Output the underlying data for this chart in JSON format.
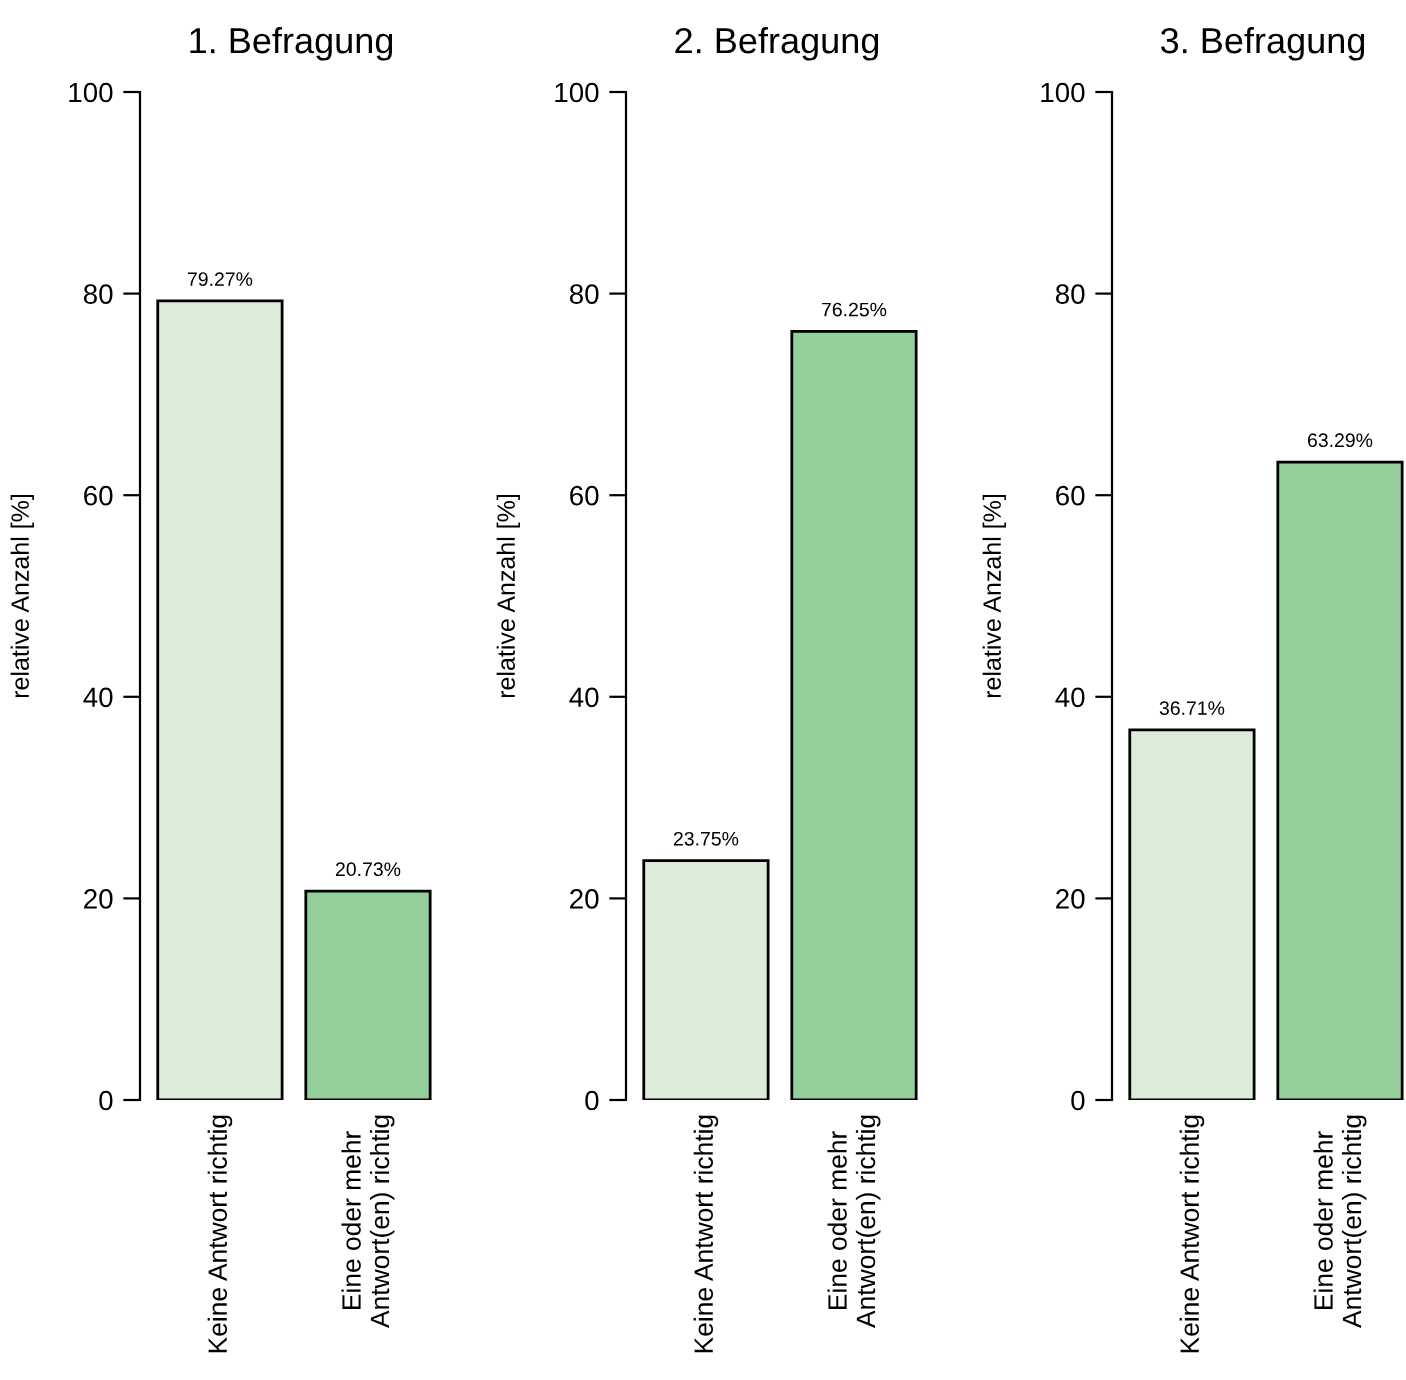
{
  "chart_data": [
    {
      "type": "bar",
      "title": "1. Befragung",
      "ylabel": "relative Anzahl [%]",
      "categories": [
        "Keine Antwort richtig",
        "Eine oder mehr\nAntwort(en) richtig"
      ],
      "values": [
        79.27,
        20.73
      ],
      "value_labels": [
        "79.27%",
        "20.73%"
      ],
      "colors": [
        "#dcecd9",
        "#94ce98"
      ],
      "ylim": [
        0,
        100
      ],
      "yticks": [
        0,
        20,
        40,
        60,
        80,
        100
      ]
    },
    {
      "type": "bar",
      "title": "2. Befragung",
      "ylabel": "relative Anzahl [%]",
      "categories": [
        "Keine Antwort richtig",
        "Eine oder mehr\nAntwort(en) richtig"
      ],
      "values": [
        23.75,
        76.25
      ],
      "value_labels": [
        "23.75%",
        "76.25%"
      ],
      "colors": [
        "#dcecd9",
        "#94ce98"
      ],
      "ylim": [
        0,
        100
      ],
      "yticks": [
        0,
        20,
        40,
        60,
        80,
        100
      ]
    },
    {
      "type": "bar",
      "title": "3. Befragung",
      "ylabel": "relative Anzahl [%]",
      "categories": [
        "Keine Antwort richtig",
        "Eine oder mehr\nAntwort(en) richtig"
      ],
      "values": [
        36.71,
        63.29
      ],
      "value_labels": [
        "36.71%",
        "63.29%"
      ],
      "colors": [
        "#dcecd9",
        "#94ce98"
      ],
      "ylim": [
        0,
        100
      ],
      "yticks": [
        0,
        20,
        40,
        60,
        80,
        100
      ]
    }
  ]
}
